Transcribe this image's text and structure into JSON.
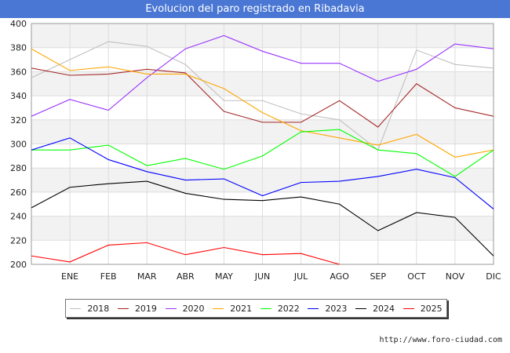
{
  "title": "Evolucion del paro registrado en Ribadavia",
  "source": "http://www.foro-ciudad.com",
  "chart_data": {
    "type": "line",
    "title": "Evolucion del paro registrado en Ribadavia",
    "categories": [
      "",
      "ENE",
      "FEB",
      "MAR",
      "ABR",
      "MAY",
      "JUN",
      "JUL",
      "AGO",
      "SEP",
      "OCT",
      "NOV",
      "DIC"
    ],
    "ylim": [
      200,
      400
    ],
    "yticks": [
      200,
      220,
      240,
      260,
      280,
      300,
      320,
      340,
      360,
      380,
      400
    ],
    "grid": true,
    "legend_position": "bottom",
    "series": [
      {
        "name": "2018",
        "color": "#c0c0c0",
        "values": [
          355,
          370,
          385,
          381,
          366,
          336,
          336,
          325,
          320,
          295,
          378,
          366,
          363
        ]
      },
      {
        "name": "2019",
        "color": "#a52a2a",
        "values": [
          363,
          357,
          358,
          362,
          359,
          327,
          318,
          318,
          336,
          314,
          350,
          330,
          323
        ]
      },
      {
        "name": "2020",
        "color": "#9933ff",
        "values": [
          323,
          337,
          328,
          355,
          379,
          390,
          377,
          367,
          367,
          352,
          362,
          383,
          379
        ]
      },
      {
        "name": "2021",
        "color": "#ffa500",
        "values": [
          379,
          361,
          364,
          358,
          358,
          346,
          326,
          311,
          305,
          299,
          308,
          289,
          295
        ]
      },
      {
        "name": "2022",
        "color": "#00ff00",
        "values": [
          295,
          295,
          299,
          282,
          288,
          279,
          290,
          310,
          312,
          295,
          292,
          273,
          295
        ]
      },
      {
        "name": "2023",
        "color": "#0000ff",
        "values": [
          295,
          305,
          287,
          277,
          270,
          271,
          257,
          268,
          269,
          273,
          279,
          272,
          246
        ]
      },
      {
        "name": "2024",
        "color": "#000000",
        "values": [
          247,
          264,
          267,
          269,
          259,
          254,
          253,
          256,
          250,
          228,
          243,
          239,
          207
        ]
      },
      {
        "name": "2025",
        "color": "#ff0000",
        "values": [
          207,
          202,
          216,
          218,
          208,
          214,
          208,
          209,
          200,
          null,
          null,
          null,
          null
        ]
      }
    ]
  }
}
